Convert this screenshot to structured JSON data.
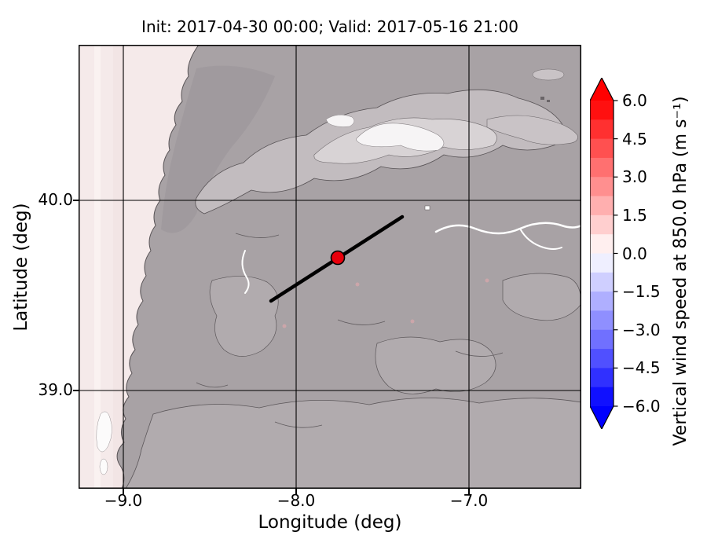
{
  "figure": {
    "title": "Init: 2017-04-30 00:00; Valid: 2017-05-16 21:00",
    "xlabel": "Longitude (deg)",
    "ylabel": "Latitude (deg)",
    "x_ticks": [
      "−9.0",
      "−8.0",
      "−7.0"
    ],
    "y_ticks": [
      "40.0",
      "39.0"
    ]
  },
  "colorbar": {
    "label": "Vertical wind speed at 850.0 hPa (m s⁻¹)",
    "ticks": [
      "6.0",
      "4.5",
      "3.0",
      "1.5",
      "0.0",
      "−1.5",
      "−3.0",
      "−4.5",
      "−6.0"
    ],
    "over_color": "#ff0000",
    "under_color": "#0000ff",
    "segments": [
      "#ff1010",
      "#ff3030",
      "#ff5050",
      "#ff7070",
      "#ff8f8f",
      "#ffafaf",
      "#ffcfcf",
      "#ffefef",
      "#efefff",
      "#cfcfff",
      "#afafff",
      "#8f8fff",
      "#7070ff",
      "#5050ff",
      "#3030ff",
      "#1010ff"
    ]
  },
  "map": {
    "marker_color": "#e8000b",
    "land_color": "#a8a2a5",
    "ocean_color": "#f5eaea",
    "mountain_light_color": "#c2bcbf",
    "snow_highlight_color": "#f6f4f5",
    "transect_color": "#000000"
  },
  "chart_data": {
    "type": "heatmap",
    "title": "Init: 2017-04-30 00:00; Valid: 2017-05-16 21:00",
    "xlabel": "Longitude (deg)",
    "ylabel": "Latitude (deg)",
    "xlim": [
      -9.25,
      -6.35
    ],
    "ylim": [
      38.48,
      40.82
    ],
    "x_ticks": [
      -9.0,
      -8.0,
      -7.0
    ],
    "y_ticks": [
      40.0,
      39.0
    ],
    "grid": true,
    "colormap": "blue-white-red (bwr), discrete steps, arrow extensions both ends",
    "colorbar_label": "Vertical wind speed at 850.0 hPa (m s⁻¹)",
    "colorbar_ticks": [
      6.0,
      4.5,
      3.0,
      1.5,
      0.0,
      -1.5,
      -3.0,
      -4.5,
      -6.0
    ],
    "value_range": [
      -6.0,
      6.0
    ],
    "field_summary": "Vertical wind speed near 0 m/s over the whole domain: neutral gray shading over terrain-contour texture, faint pink (slightly positive) strip over the ocean along the west edge, brightest near-white band along the mountain ridge northeast of center",
    "overlays": {
      "marker": {
        "lon": -7.75,
        "lat": 39.7,
        "style": "red filled circle with black edge"
      },
      "transect_line": {
        "lon_from": -8.14,
        "lat_from": 39.47,
        "lon_to": -7.38,
        "lat_to": 39.91,
        "style": "thick black straight line"
      }
    }
  }
}
